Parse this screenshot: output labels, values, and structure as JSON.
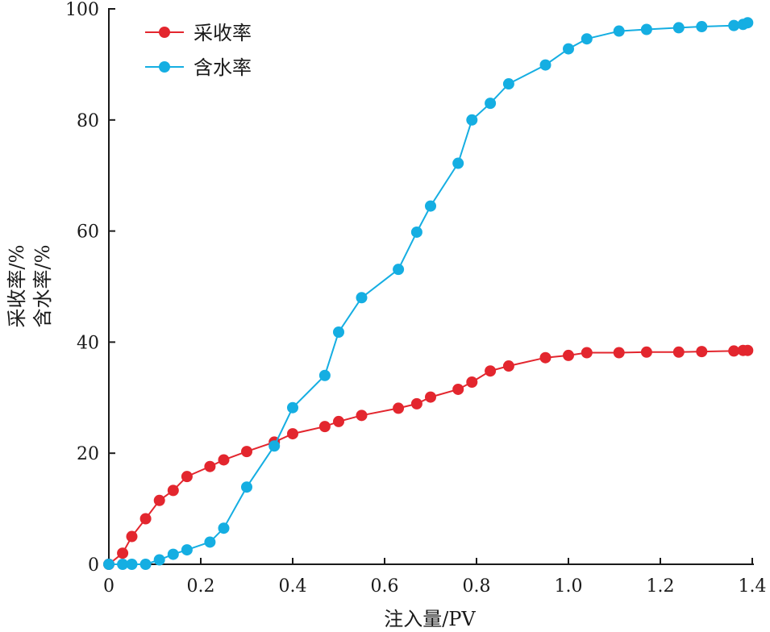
{
  "chart_data": {
    "type": "line",
    "xlabel": "注入量/PV",
    "ylabel_lines": [
      "采收率/%",
      "含水率/%"
    ],
    "xlim": [
      0,
      1.4
    ],
    "ylim": [
      0,
      100
    ],
    "xticks": [
      "0",
      "0.2",
      "0.4",
      "0.6",
      "0.8",
      "1.0",
      "1.2",
      "1.4"
    ],
    "yticks": [
      "0",
      "20",
      "40",
      "60",
      "80",
      "100"
    ],
    "grid": false,
    "legend_position": "top-left",
    "series": [
      {
        "name": "采收率",
        "color": "#e3262e",
        "x": [
          0,
          0.03,
          0.05,
          0.08,
          0.11,
          0.14,
          0.17,
          0.22,
          0.25,
          0.3,
          0.36,
          0.4,
          0.47,
          0.5,
          0.55,
          0.63,
          0.67,
          0.7,
          0.76,
          0.79,
          0.83,
          0.87,
          0.95,
          1.0,
          1.04,
          1.11,
          1.17,
          1.24,
          1.29,
          1.36,
          1.38,
          1.39
        ],
        "y": [
          0,
          2,
          5,
          8.2,
          11.5,
          13.3,
          15.8,
          17.6,
          18.8,
          20.3,
          22,
          23.5,
          24.8,
          25.7,
          26.8,
          28.1,
          28.9,
          30.1,
          31.5,
          32.8,
          34.8,
          35.7,
          37.2,
          37.6,
          38.1,
          38.1,
          38.2,
          38.2,
          38.3,
          38.4,
          38.5,
          38.5
        ]
      },
      {
        "name": "含水率",
        "color": "#15aee2",
        "x": [
          0,
          0.03,
          0.05,
          0.08,
          0.11,
          0.14,
          0.17,
          0.22,
          0.25,
          0.3,
          0.36,
          0.4,
          0.47,
          0.5,
          0.55,
          0.63,
          0.67,
          0.7,
          0.76,
          0.79,
          0.83,
          0.87,
          0.95,
          1.0,
          1.04,
          1.11,
          1.17,
          1.24,
          1.29,
          1.36,
          1.38,
          1.39
        ],
        "y": [
          0,
          0,
          0,
          0,
          0.8,
          1.8,
          2.6,
          4,
          6.5,
          13.9,
          21.3,
          28.2,
          34,
          41.8,
          48,
          53.1,
          59.8,
          64.5,
          72.2,
          80,
          83,
          86.5,
          89.9,
          92.8,
          94.6,
          96,
          96.3,
          96.6,
          96.8,
          97,
          97.2,
          97.5
        ]
      }
    ]
  }
}
